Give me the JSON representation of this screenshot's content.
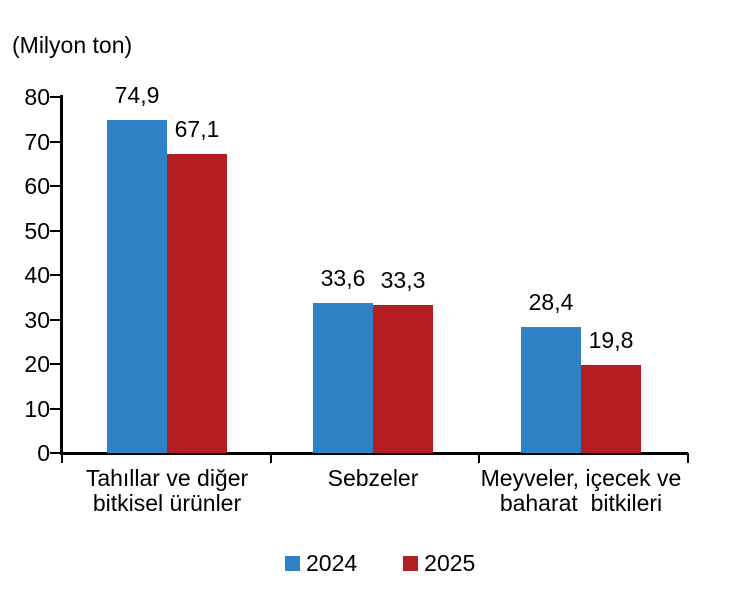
{
  "chart_data": {
    "type": "bar",
    "title": "",
    "unit_label": "(Milyon ton)",
    "categories": [
      [
        "Tahıllar ve diğer",
        "bitkisel ürünler"
      ],
      [
        "Sebzeler"
      ],
      [
        "Meyveler, içecek ve",
        "baharat  bitkileri"
      ]
    ],
    "series": [
      {
        "name": "2024",
        "color": "#2E81C4",
        "values": [
          74.9,
          33.6,
          28.4
        ],
        "labels": [
          "74,9",
          "33,6",
          "28,4"
        ]
      },
      {
        "name": "2025",
        "color": "#B41E23",
        "values": [
          67.1,
          33.3,
          19.8
        ],
        "labels": [
          "67,1",
          "33,3",
          "19,8"
        ]
      }
    ],
    "ylim": [
      0,
      80
    ],
    "yticks": [
      0,
      10,
      20,
      30,
      40,
      50,
      60,
      70,
      80
    ],
    "xlabel": "",
    "ylabel": "",
    "grid": false,
    "legend_position": "bottom",
    "axis_color": "#000000",
    "text_color": "#000000",
    "background_color": "#ffffff"
  }
}
